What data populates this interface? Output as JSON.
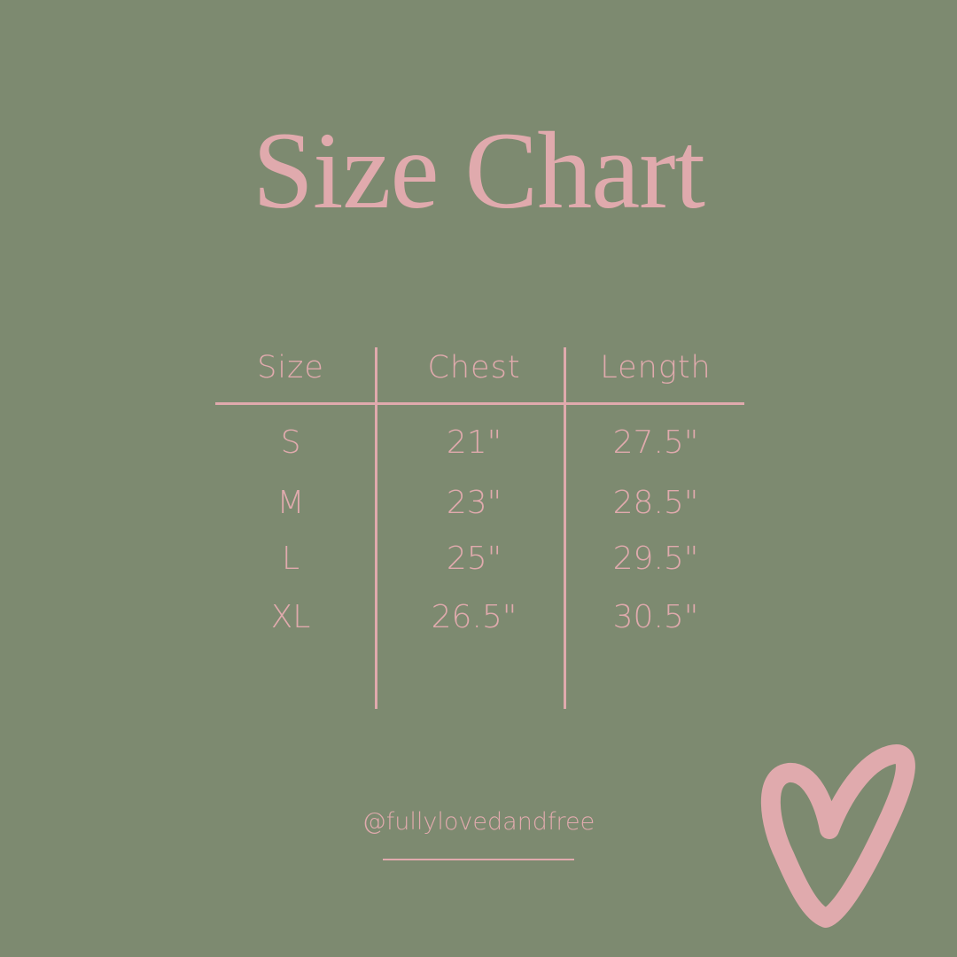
{
  "title": "Size Chart",
  "table": {
    "headers": [
      "Size",
      "Chest",
      "Length"
    ],
    "rows": [
      [
        "S",
        "21\"",
        "27.5\""
      ],
      [
        "M",
        "23\"",
        "28.5\""
      ],
      [
        "L",
        "25\"",
        "29.5\""
      ],
      [
        "XL",
        "26.5\"",
        "30.5\""
      ]
    ]
  },
  "handle": "@fullylovedandfree",
  "colors": {
    "background": "#7d8a70",
    "accent": "#e0aaad"
  },
  "decoration_icon": "heart-icon"
}
